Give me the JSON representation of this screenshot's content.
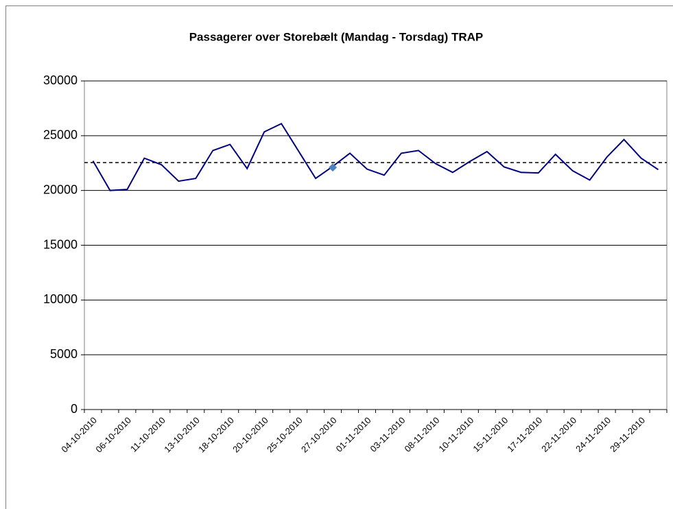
{
  "chart_data": {
    "type": "line",
    "title": "Passagerer over Storebælt (Mandag - Torsdag) TRAP",
    "categories": [
      "04-10-2010",
      null,
      "06-10-2010",
      null,
      "11-10-2010",
      null,
      "13-10-2010",
      null,
      "18-10-2010",
      null,
      "20-10-2010",
      null,
      "25-10-2010",
      null,
      "27-10-2010",
      null,
      "01-11-2010",
      null,
      "03-11-2010",
      null,
      "08-11-2010",
      null,
      "10-11-2010",
      null,
      "15-11-2010",
      null,
      "17-11-2010",
      null,
      "22-11-2010",
      null,
      "24-11-2010",
      null,
      "29-11-2010",
      null
    ],
    "series": [
      {
        "color": "#000080",
        "values": [
          22700,
          20000,
          20100,
          22950,
          22350,
          20850,
          21100,
          23650,
          24200,
          22000,
          25350,
          26100,
          23600,
          21100,
          22200,
          23400,
          21950,
          21400,
          23400,
          23650,
          22450,
          21650,
          22650,
          23550,
          22150,
          21650,
          21600,
          23300,
          21800,
          20950,
          23050,
          24650,
          22950,
          21900
        ]
      },
      {
        "color": "#4f81bd",
        "marker": "diamond",
        "line": false,
        "values": [
          null,
          null,
          null,
          null,
          null,
          null,
          null,
          null,
          null,
          null,
          null,
          null,
          null,
          null,
          22100,
          null,
          null,
          null,
          null,
          null,
          null,
          null,
          null,
          null,
          null,
          null,
          null,
          null,
          null,
          null,
          null,
          null,
          null,
          null
        ]
      }
    ],
    "reference_line": 22550,
    "ylim": [
      0,
      30000
    ],
    "yticks": [
      0,
      5000,
      10000,
      15000,
      20000,
      25000,
      30000
    ],
    "grid": true
  }
}
